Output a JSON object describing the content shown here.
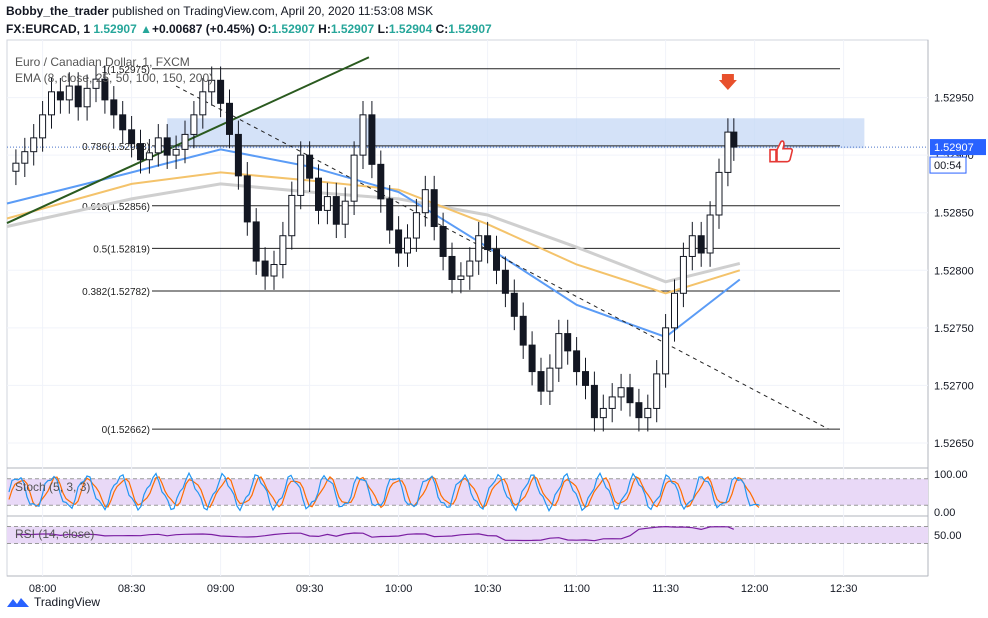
{
  "header": {
    "publisher_line": {
      "user": "Bobby_the_trader",
      "rest": " published on TradingView.com, April 20, 2020 11:53:08 MSK"
    },
    "ticker": {
      "symbol": "FX:EURCAD, 1",
      "last": "1.52907",
      "change_arrow": "▲",
      "change": "+0.00687 (+0.45%)",
      "o_label": "O:",
      "o": "1.52907",
      "h_label": "H:",
      "h": "1.52907",
      "l_label": "L:",
      "l": "1.52904",
      "c_label": "C:",
      "c": "1.52907"
    }
  },
  "footer": {
    "brand": "TradingView",
    "logo_icon": "tradingview-logo-icon"
  },
  "colors": {
    "up": "#26a69a",
    "ema_blue": "#5b9cf6",
    "ema_yellow": "#f4c36b",
    "ema_gray": "#cfcfcf",
    "trend": "#2a5a1f",
    "zone": "#c5d8f6",
    "stoch_k": "#2196f3",
    "stoch_d": "#ff6d00",
    "rsi": "#7b1fa2",
    "osc_bg": "#e9d9f7",
    "marker": "#e8502c"
  },
  "chart_data": {
    "type": "candlestick",
    "title": "Euro / Canadian Dollar, 1, FXCM",
    "indicator_label": "EMA (8, close, 25, 50, 100, 150, 200)",
    "x_ticks": [
      "08:00",
      "08:30",
      "09:00",
      "09:30",
      "10:00",
      "10:30",
      "11:00",
      "11:30",
      "12:00",
      "12:30"
    ],
    "y_ticks": [
      "1.52950",
      "1.52900",
      "1.52850",
      "1.52800",
      "1.52750",
      "1.52700",
      "1.52650"
    ],
    "ylim": [
      1.5263,
      1.53
    ],
    "last_price_label": "1.52907",
    "countdown_label": "00:54",
    "fib_levels": [
      {
        "label": "1(1.52975)",
        "value": 1.52975
      },
      {
        "label": "0.786(1.52908)",
        "value": 1.52908
      },
      {
        "label": "0.618(1.52856)",
        "value": 1.52856
      },
      {
        "label": "0.5(1.52819)",
        "value": 1.52819
      },
      {
        "label": "0.382(1.52782)",
        "value": 1.52782
      },
      {
        "label": "0(1.52662)",
        "value": 1.52662
      }
    ],
    "resistance_zone": {
      "from_time": "08:42",
      "to_time": "12:37",
      "low": 1.52906,
      "high": 1.52932
    },
    "green_trendline": {
      "from": [
        "07:48",
        1.52841
      ],
      "to": [
        "09:50",
        1.52985
      ]
    },
    "dashed_trendline": {
      "from": [
        "08:45",
        1.5296
      ],
      "to": [
        "12:25",
        1.52662
      ]
    },
    "closes": [
      [
        "07:48",
        1.52886
      ],
      [
        "07:51",
        1.52893
      ],
      [
        "07:54",
        1.52903
      ],
      [
        "07:57",
        1.52915
      ],
      [
        "08:00",
        1.52935
      ],
      [
        "08:03",
        1.52955
      ],
      [
        "08:06",
        1.52948
      ],
      [
        "08:09",
        1.5296
      ],
      [
        "08:12",
        1.52942
      ],
      [
        "08:15",
        1.52958
      ],
      [
        "08:18",
        1.52966
      ],
      [
        "08:21",
        1.52948
      ],
      [
        "08:24",
        1.52935
      ],
      [
        "08:27",
        1.52922
      ],
      [
        "08:30",
        1.5291
      ],
      [
        "08:33",
        1.52896
      ],
      [
        "08:36",
        1.52902
      ],
      [
        "08:39",
        1.52915
      ],
      [
        "08:42",
        1.529
      ],
      [
        "08:45",
        1.52905
      ],
      [
        "08:48",
        1.52918
      ],
      [
        "08:51",
        1.52935
      ],
      [
        "08:54",
        1.52955
      ],
      [
        "08:57",
        1.52965
      ],
      [
        "09:00",
        1.52945
      ],
      [
        "09:03",
        1.52918
      ],
      [
        "09:06",
        1.52882
      ],
      [
        "09:09",
        1.52842
      ],
      [
        "09:12",
        1.52808
      ],
      [
        "09:15",
        1.52795
      ],
      [
        "09:18",
        1.52805
      ],
      [
        "09:21",
        1.5283
      ],
      [
        "09:24",
        1.52865
      ],
      [
        "09:27",
        1.529
      ],
      [
        "09:30",
        1.5288
      ],
      [
        "09:33",
        1.52852
      ],
      [
        "09:36",
        1.52864
      ],
      [
        "09:39",
        1.5284
      ],
      [
        "09:42",
        1.5286
      ],
      [
        "09:45",
        1.529
      ],
      [
        "09:48",
        1.52935
      ],
      [
        "09:51",
        1.52892
      ],
      [
        "09:54",
        1.52862
      ],
      [
        "09:57",
        1.52835
      ],
      [
        "10:00",
        1.52815
      ],
      [
        "10:03",
        1.52828
      ],
      [
        "10:06",
        1.5285
      ],
      [
        "10:09",
        1.5287
      ],
      [
        "10:12",
        1.52838
      ],
      [
        "10:15",
        1.52812
      ],
      [
        "10:18",
        1.52792
      ],
      [
        "10:21",
        1.52795
      ],
      [
        "10:24",
        1.52808
      ],
      [
        "10:27",
        1.5283
      ],
      [
        "10:30",
        1.52818
      ],
      [
        "10:33",
        1.528
      ],
      [
        "10:36",
        1.5278
      ],
      [
        "10:39",
        1.5276
      ],
      [
        "10:42",
        1.52735
      ],
      [
        "10:45",
        1.52712
      ],
      [
        "10:48",
        1.52695
      ],
      [
        "10:51",
        1.52715
      ],
      [
        "10:54",
        1.52745
      ],
      [
        "10:57",
        1.5273
      ],
      [
        "11:00",
        1.52712
      ],
      [
        "11:03",
        1.527
      ],
      [
        "11:06",
        1.52672
      ],
      [
        "11:09",
        1.5268
      ],
      [
        "11:12",
        1.5269
      ],
      [
        "11:15",
        1.52698
      ],
      [
        "11:18",
        1.52685
      ],
      [
        "11:21",
        1.52672
      ],
      [
        "11:24",
        1.5268
      ],
      [
        "11:27",
        1.5271
      ],
      [
        "11:30",
        1.5275
      ],
      [
        "11:33",
        1.5278
      ],
      [
        "11:36",
        1.52812
      ],
      [
        "11:39",
        1.5283
      ],
      [
        "11:42",
        1.52815
      ],
      [
        "11:45",
        1.52848
      ],
      [
        "11:48",
        1.52885
      ],
      [
        "11:51",
        1.5292
      ],
      [
        "11:53",
        1.52907
      ]
    ],
    "ema_blue": [
      [
        [
          "07:48",
          1.52858
        ],
        [
          "08:30",
          1.52885
        ],
        [
          "09:00",
          1.52905
        ],
        [
          "09:30",
          1.5289
        ],
        [
          "10:00",
          1.52868
        ],
        [
          "10:30",
          1.5282
        ],
        [
          "11:00",
          1.5277
        ],
        [
          "11:30",
          1.52742
        ],
        [
          "11:55",
          1.52792
        ]
      ]
    ],
    "ema_yellow": [
      [
        [
          "07:48",
          1.52845
        ],
        [
          "08:30",
          1.52875
        ],
        [
          "09:00",
          1.52885
        ],
        [
          "09:30",
          1.52878
        ],
        [
          "10:00",
          1.5287
        ],
        [
          "10:30",
          1.5284
        ],
        [
          "11:00",
          1.52805
        ],
        [
          "11:30",
          1.5278
        ],
        [
          "11:55",
          1.528
        ]
      ]
    ],
    "ema_gray": [
      [
        [
          "07:48",
          1.52838
        ],
        [
          "08:30",
          1.52862
        ],
        [
          "09:00",
          1.52875
        ],
        [
          "09:30",
          1.52868
        ],
        [
          "10:00",
          1.52862
        ],
        [
          "10:30",
          1.52848
        ],
        [
          "11:00",
          1.5282
        ],
        [
          "11:30",
          1.5279
        ],
        [
          "11:55",
          1.52806
        ]
      ]
    ],
    "stoch": {
      "label": "Stoch (5, 3, 3)",
      "upper_band": 80,
      "lower_band": 20,
      "ticks": [
        "100.00",
        "0.00"
      ]
    },
    "rsi": {
      "label": "RSI (14, close)",
      "upper_band": 70,
      "lower_band": 30,
      "ticks": [
        "50.00"
      ]
    },
    "markers": [
      "sell-arrow-icon",
      "thumbs-up-icon"
    ]
  }
}
